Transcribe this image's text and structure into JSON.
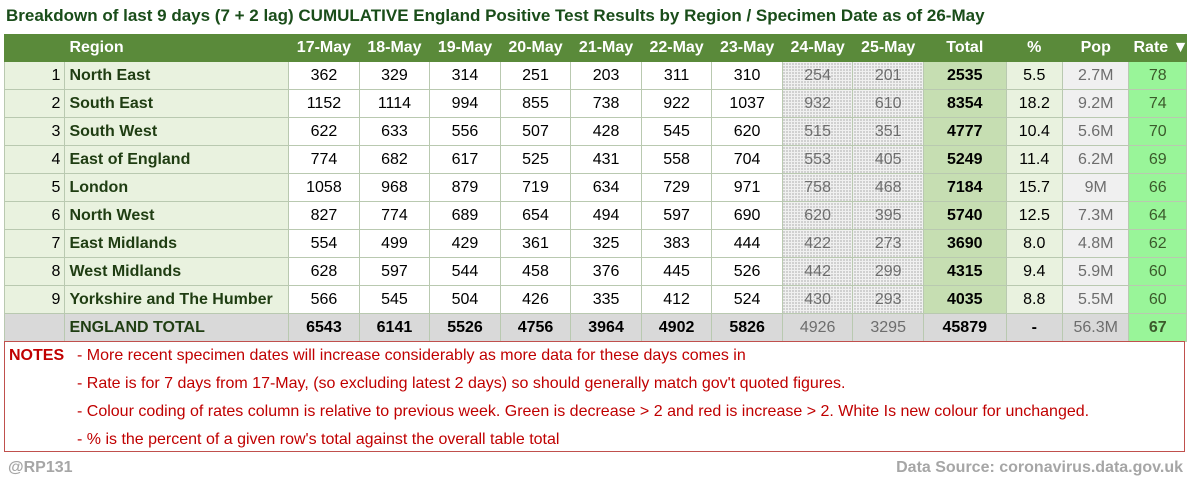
{
  "title": "Breakdown of last 9 days (7 + 2 lag) CUMULATIVE England Positive Test Results by Region / Specimen Date as of 26-May",
  "colors": {
    "header_bg": "#5a8a3a",
    "rate_green": "#99f599",
    "total_bg": "#c6deb2",
    "notes_red": "#c00000"
  },
  "chart_data": {
    "type": "table",
    "columns": [
      "",
      "Region",
      "17-May",
      "18-May",
      "19-May",
      "20-May",
      "21-May",
      "22-May",
      "23-May",
      "24-May",
      "25-May",
      "Total",
      "%",
      "Pop",
      "Rate ▼"
    ],
    "rows": [
      {
        "rank": "1",
        "region": "North East",
        "values": [
          "362",
          "329",
          "314",
          "251",
          "203",
          "311",
          "310"
        ],
        "lag": [
          "254",
          "201"
        ],
        "total": "2535",
        "pct": "5.5",
        "pop": "2.7M",
        "rate": "78"
      },
      {
        "rank": "2",
        "region": "South East",
        "values": [
          "1152",
          "1114",
          "994",
          "855",
          "738",
          "922",
          "1037"
        ],
        "lag": [
          "932",
          "610"
        ],
        "total": "8354",
        "pct": "18.2",
        "pop": "9.2M",
        "rate": "74"
      },
      {
        "rank": "3",
        "region": "South West",
        "values": [
          "622",
          "633",
          "556",
          "507",
          "428",
          "545",
          "620"
        ],
        "lag": [
          "515",
          "351"
        ],
        "total": "4777",
        "pct": "10.4",
        "pop": "5.6M",
        "rate": "70"
      },
      {
        "rank": "4",
        "region": "East of England",
        "values": [
          "774",
          "682",
          "617",
          "525",
          "431",
          "558",
          "704"
        ],
        "lag": [
          "553",
          "405"
        ],
        "total": "5249",
        "pct": "11.4",
        "pop": "6.2M",
        "rate": "69"
      },
      {
        "rank": "5",
        "region": "London",
        "values": [
          "1058",
          "968",
          "879",
          "719",
          "634",
          "729",
          "971"
        ],
        "lag": [
          "758",
          "468"
        ],
        "total": "7184",
        "pct": "15.7",
        "pop": "9M",
        "rate": "66"
      },
      {
        "rank": "6",
        "region": "North West",
        "values": [
          "827",
          "774",
          "689",
          "654",
          "494",
          "597",
          "690"
        ],
        "lag": [
          "620",
          "395"
        ],
        "total": "5740",
        "pct": "12.5",
        "pop": "7.3M",
        "rate": "64"
      },
      {
        "rank": "7",
        "region": "East Midlands",
        "values": [
          "554",
          "499",
          "429",
          "361",
          "325",
          "383",
          "444"
        ],
        "lag": [
          "422",
          "273"
        ],
        "total": "3690",
        "pct": "8.0",
        "pop": "4.8M",
        "rate": "62"
      },
      {
        "rank": "8",
        "region": "West Midlands",
        "values": [
          "628",
          "597",
          "544",
          "458",
          "376",
          "445",
          "526"
        ],
        "lag": [
          "442",
          "299"
        ],
        "total": "4315",
        "pct": "9.4",
        "pop": "5.9M",
        "rate": "60"
      },
      {
        "rank": "9",
        "region": "Yorkshire and The Humber",
        "values": [
          "566",
          "545",
          "504",
          "426",
          "335",
          "412",
          "524"
        ],
        "lag": [
          "430",
          "293"
        ],
        "total": "4035",
        "pct": "8.8",
        "pop": "5.5M",
        "rate": "60"
      }
    ],
    "total_row": {
      "region": "ENGLAND TOTAL",
      "values": [
        "6543",
        "6141",
        "5526",
        "4756",
        "3964",
        "4902",
        "5826"
      ],
      "lag": [
        "4926",
        "3295"
      ],
      "total": "45879",
      "pct": "-",
      "pop": "56.3M",
      "rate": "67"
    }
  },
  "notes": {
    "label": "NOTES",
    "lines": [
      "- More recent specimen dates will increase considerably as more data for these days comes in",
      "- Rate is for 7 days from 17-May, (so excluding latest 2 days) so should generally match gov't quoted figures.",
      "- Colour coding of rates column is relative to previous week. Green is decrease > 2 and red is increase > 2. White Is new colour for unchanged.",
      "- % is the percent of a given row's total against the overall table total"
    ]
  },
  "footer": {
    "handle": "@RP131",
    "source": "Data Source: coronavirus.data.gov.uk"
  }
}
